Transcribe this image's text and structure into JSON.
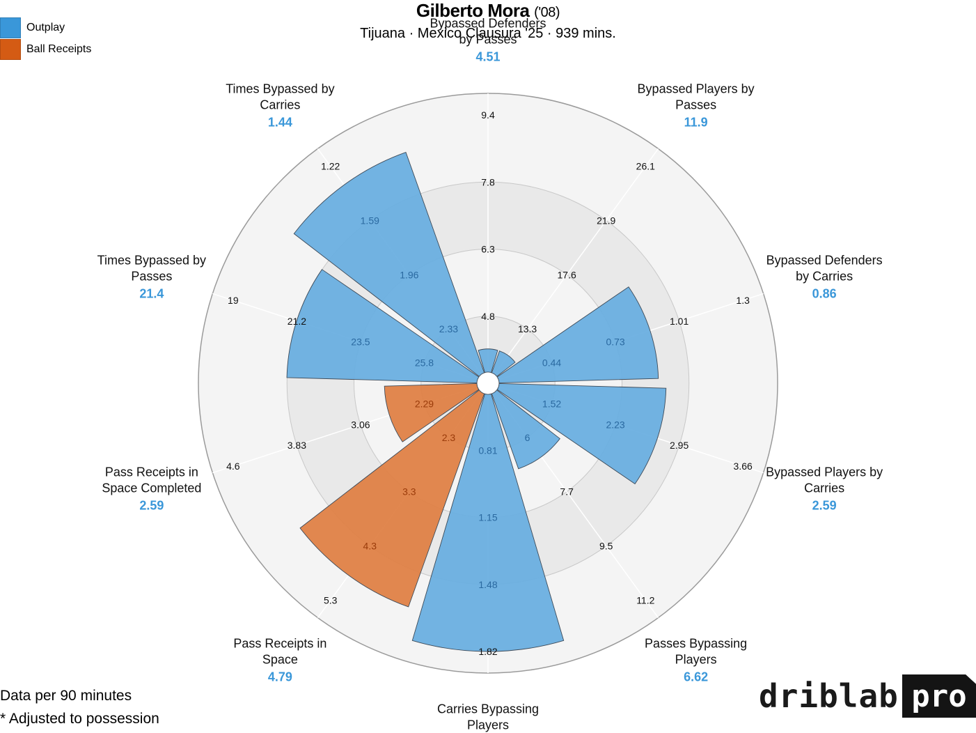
{
  "header": {
    "name": "Gilberto Mora",
    "suffix": "('08)",
    "subtitle": "Tijuana · Mexico Clausura '25 · 939 mins."
  },
  "legend": [
    {
      "label": "Outplay",
      "color": "#3a97d9"
    },
    {
      "label": "Ball Receipts",
      "color": "#d45b14"
    }
  ],
  "colors": {
    "outplay_fill": "#6aafe0",
    "receipts_fill": "#df8146",
    "value_text": "#3a97d9",
    "ring_light": "#f4f4f4",
    "ring_dark": "#e9e9e9"
  },
  "chart_data": {
    "type": "polar-bar",
    "categories": [
      {
        "label": [
          "Bypassed Defenders",
          "by Passes"
        ],
        "value": "4.51",
        "pct": 0.09,
        "group": "Outplay",
        "ticks": [
          "4.8",
          "6.3",
          "7.8",
          "9.4"
        ]
      },
      {
        "label": [
          "Bypassed Players by",
          "Passes"
        ],
        "value": "11.9",
        "pct": 0.09,
        "group": "Outplay",
        "ticks": [
          "13.3",
          "17.6",
          "21.9",
          "26.1"
        ]
      },
      {
        "label": [
          "Bypassed Defenders",
          "by Carries"
        ],
        "value": "0.86",
        "pct": 0.62,
        "group": "Outplay",
        "ticks": [
          "0.44",
          "0.73",
          "1.01",
          "1.3"
        ]
      },
      {
        "label": [
          "Bypassed Players by",
          "Carries"
        ],
        "value": "2.59",
        "pct": 0.65,
        "group": "Outplay",
        "ticks": [
          "1.52",
          "2.23",
          "2.95",
          "3.66"
        ]
      },
      {
        "label": [
          "Passes Bypassing",
          "Players"
        ],
        "value": "6.62",
        "pct": 0.31,
        "group": "Outplay",
        "ticks": [
          "6",
          "7.7",
          "9.5",
          "11.2"
        ]
      },
      {
        "label": [
          "Carries Bypassing",
          "Players"
        ],
        "value": "1.82",
        "pct": 1.0,
        "group": "Outplay",
        "ticks": [
          "0.81",
          "1.15",
          "1.48",
          "1.82"
        ]
      },
      {
        "label": [
          "Pass Receipts in",
          "Space"
        ],
        "value": "4.79",
        "pct": 0.88,
        "group": "Ball Receipts",
        "ticks": [
          "2.3",
          "3.3",
          "4.3",
          "5.3"
        ]
      },
      {
        "label": [
          "Pass Receipts in",
          "Space Completed"
        ],
        "value": "2.59",
        "pct": 0.36,
        "group": "Ball Receipts",
        "ticks": [
          "2.29",
          "3.06",
          "3.83",
          "4.6"
        ]
      },
      {
        "label": [
          "Times Bypassed by",
          "Passes"
        ],
        "value": "21.4",
        "pct": 0.74,
        "group": "Outplay",
        "ticks": [
          "25.8",
          "23.5",
          "21.2",
          "19"
        ]
      },
      {
        "label": [
          "Times Bypassed by",
          "Carries"
        ],
        "value": "1.44",
        "pct": 0.91,
        "group": "Outplay",
        "ticks": [
          "2.33",
          "1.96",
          "1.59",
          "1.22"
        ]
      }
    ]
  },
  "footnotes": [
    "Data per 90 minutes",
    "* Adjusted to possession"
  ],
  "logo": {
    "word": "driblab",
    "badge": "pro"
  }
}
